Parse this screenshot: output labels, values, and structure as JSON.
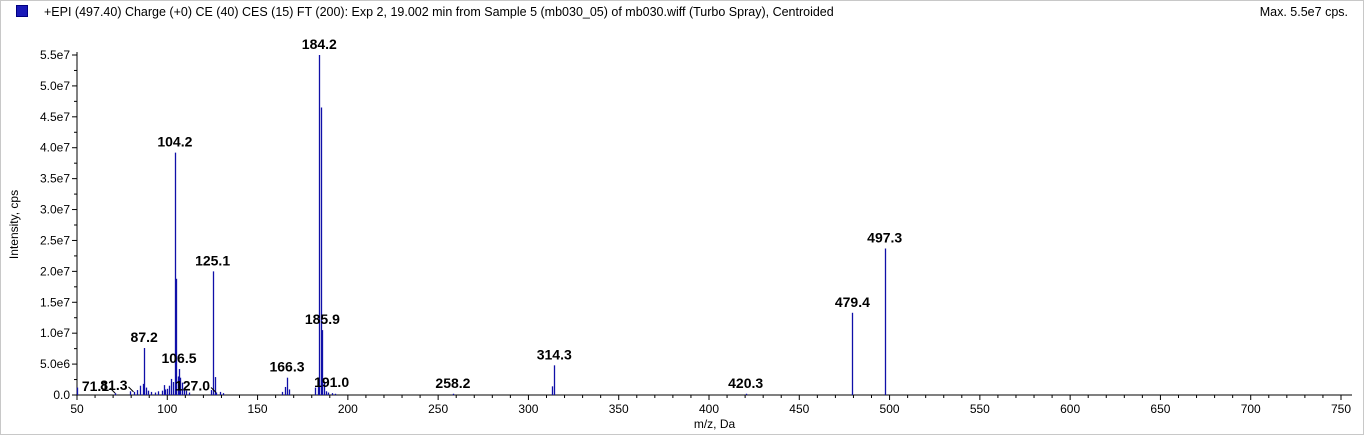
{
  "header": {
    "legend_icon": "series-square-icon",
    "title": "+EPI (497.40) Charge (+0) CE (40) CES (15) FT (200): Exp 2, 19.002 min from Sample 5 (mb030_05) of mb030.wiff (Turbo Spray), Centroided",
    "max_label": "Max. 5.5e7 cps."
  },
  "colors": {
    "series": "#1010a8",
    "axis": "#000000",
    "background": "#ffffff"
  },
  "chart_data": {
    "type": "bar",
    "title": "+EPI (497.40) Charge (+0) CE (40) CES (15) FT (200): Exp 2, 19.002 min from Sample 5 (mb030_05) of mb030.wiff (Turbo Spray), Centroided",
    "xlabel": "m/z, Da",
    "ylabel": "Intensity, cps",
    "xlim": [
      50,
      755
    ],
    "ylim": [
      0,
      55000000
    ],
    "x_ticks": [
      50,
      100,
      150,
      200,
      250,
      300,
      350,
      400,
      450,
      500,
      550,
      600,
      650,
      700,
      750
    ],
    "x_tick_labels": [
      "50",
      "100",
      "150",
      "200",
      "250",
      "300",
      "350",
      "400",
      "450",
      "500",
      "550",
      "600",
      "650",
      "700",
      "750"
    ],
    "y_ticks": [
      0,
      5000000,
      10000000,
      15000000,
      20000000,
      25000000,
      30000000,
      35000000,
      40000000,
      45000000,
      50000000,
      55000000
    ],
    "y_tick_labels": [
      "0.0",
      "5.0e6",
      "1.0e7",
      "1.5e7",
      "2.0e7",
      "2.5e7",
      "3.0e7",
      "3.5e7",
      "4.0e7",
      "4.5e7",
      "5.0e7",
      "5.5e7"
    ],
    "grid": false,
    "peaks": [
      {
        "x": 50.2,
        "y": 1200000
      },
      {
        "x": 71.1,
        "y": 300000
      },
      {
        "x": 79.5,
        "y": 600000
      },
      {
        "x": 81.3,
        "y": 500000
      },
      {
        "x": 83.0,
        "y": 800000
      },
      {
        "x": 85.1,
        "y": 1500000
      },
      {
        "x": 86.3,
        "y": 1800000
      },
      {
        "x": 87.2,
        "y": 7600000
      },
      {
        "x": 88.2,
        "y": 1200000
      },
      {
        "x": 89.1,
        "y": 700000
      },
      {
        "x": 91.0,
        "y": 500000
      },
      {
        "x": 93.0,
        "y": 400000
      },
      {
        "x": 95.0,
        "y": 600000
      },
      {
        "x": 97.0,
        "y": 700000
      },
      {
        "x": 98.2,
        "y": 1600000
      },
      {
        "x": 99.0,
        "y": 900000
      },
      {
        "x": 100.1,
        "y": 1000000
      },
      {
        "x": 101.2,
        "y": 1500000
      },
      {
        "x": 102.1,
        "y": 2600000
      },
      {
        "x": 103.0,
        "y": 2100000
      },
      {
        "x": 104.2,
        "y": 39200000
      },
      {
        "x": 105.1,
        "y": 18800000
      },
      {
        "x": 106.0,
        "y": 3000000
      },
      {
        "x": 106.5,
        "y": 4200000
      },
      {
        "x": 107.2,
        "y": 2800000
      },
      {
        "x": 108.1,
        "y": 2000000
      },
      {
        "x": 109.0,
        "y": 1000000
      },
      {
        "x": 110.1,
        "y": 700000
      },
      {
        "x": 112.0,
        "y": 400000
      },
      {
        "x": 124.0,
        "y": 800000
      },
      {
        "x": 125.1,
        "y": 20000000
      },
      {
        "x": 126.2,
        "y": 2900000
      },
      {
        "x": 127.0,
        "y": 400000
      },
      {
        "x": 129.0,
        "y": 500000
      },
      {
        "x": 131.0,
        "y": 300000
      },
      {
        "x": 163.5,
        "y": 500000
      },
      {
        "x": 165.1,
        "y": 1300000
      },
      {
        "x": 166.3,
        "y": 2800000
      },
      {
        "x": 167.3,
        "y": 900000
      },
      {
        "x": 182.0,
        "y": 1200000
      },
      {
        "x": 183.2,
        "y": 2000000
      },
      {
        "x": 184.2,
        "y": 55000000
      },
      {
        "x": 185.0,
        "y": 46500000
      },
      {
        "x": 185.9,
        "y": 10500000
      },
      {
        "x": 187.0,
        "y": 2000000
      },
      {
        "x": 188.0,
        "y": 600000
      },
      {
        "x": 189.0,
        "y": 400000
      },
      {
        "x": 191.0,
        "y": 300000
      },
      {
        "x": 193.0,
        "y": 200000
      },
      {
        "x": 258.2,
        "y": 200000
      },
      {
        "x": 313.0,
        "y": 1400000
      },
      {
        "x": 314.3,
        "y": 4800000
      },
      {
        "x": 420.3,
        "y": 200000
      },
      {
        "x": 479.4,
        "y": 13300000
      },
      {
        "x": 497.3,
        "y": 23700000
      }
    ],
    "annotations": [
      {
        "text": "71.1",
        "x": 71.1,
        "y": 300000,
        "leader": true
      },
      {
        "text": "81.3",
        "x": 81.3,
        "y": 500000,
        "leader": true
      },
      {
        "text": "87.2",
        "x": 87.2,
        "y": 7600000,
        "leader": false
      },
      {
        "text": "104.2",
        "x": 104.2,
        "y": 39200000,
        "leader": false
      },
      {
        "text": "106.5",
        "x": 106.5,
        "y": 4200000,
        "leader": false
      },
      {
        "text": "125.1",
        "x": 125.1,
        "y": 20000000,
        "leader": false
      },
      {
        "text": "127.0",
        "x": 127.0,
        "y": 400000,
        "leader": true
      },
      {
        "text": "166.3",
        "x": 166.3,
        "y": 2800000,
        "leader": false
      },
      {
        "text": "184.2",
        "x": 184.2,
        "y": 55000000,
        "leader": false
      },
      {
        "text": "185.9",
        "x": 185.9,
        "y": 10500000,
        "leader": false
      },
      {
        "text": "191.0",
        "x": 191.0,
        "y": 300000,
        "leader": false
      },
      {
        "text": "258.2",
        "x": 258.2,
        "y": 200000,
        "leader": false
      },
      {
        "text": "314.3",
        "x": 314.3,
        "y": 4800000,
        "leader": false
      },
      {
        "text": "420.3",
        "x": 420.3,
        "y": 200000,
        "leader": false
      },
      {
        "text": "479.4",
        "x": 479.4,
        "y": 13300000,
        "leader": false
      },
      {
        "text": "497.3",
        "x": 497.3,
        "y": 23700000,
        "leader": false
      }
    ]
  }
}
